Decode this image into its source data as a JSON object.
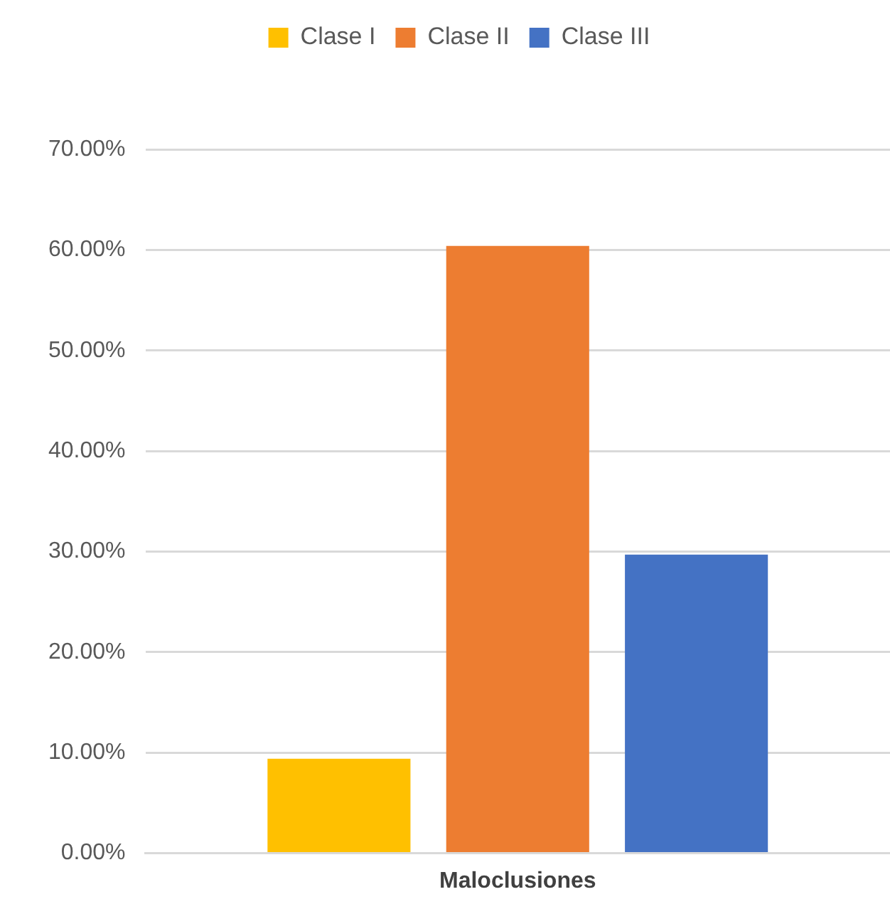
{
  "chart_data": {
    "type": "bar",
    "categories": [
      "Maloclusiones"
    ],
    "series": [
      {
        "name": "Clase I",
        "color": "#ffc000",
        "values": [
          9.4
        ]
      },
      {
        "name": "Clase II",
        "color": "#ed7d31",
        "values": [
          60.4
        ]
      },
      {
        "name": "Clase III",
        "color": "#4472c4",
        "values": [
          29.7
        ]
      }
    ],
    "ylim": [
      0,
      70
    ],
    "yticks": [
      {
        "value": 0,
        "label": "0.00%"
      },
      {
        "value": 10,
        "label": "10.00%"
      },
      {
        "value": 20,
        "label": "20.00%"
      },
      {
        "value": 30,
        "label": "30.00%"
      },
      {
        "value": 40,
        "label": "40.00%"
      },
      {
        "value": 50,
        "label": "50.00%"
      },
      {
        "value": 60,
        "label": "60.00%"
      },
      {
        "value": 70,
        "label": "70.00%"
      }
    ],
    "grid": "y",
    "legend": "top"
  }
}
